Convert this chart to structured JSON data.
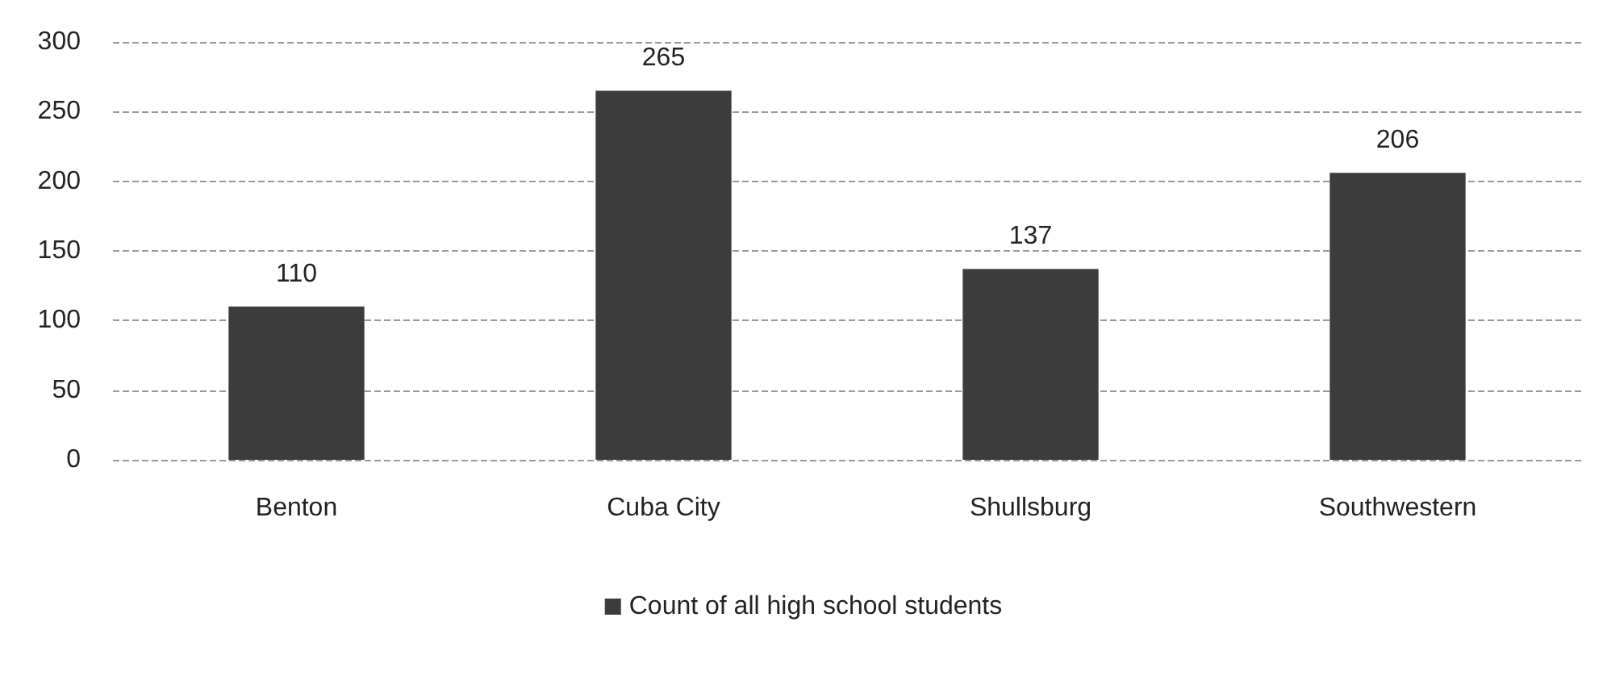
{
  "chart_data": {
    "type": "bar",
    "categories": [
      "Benton",
      "Cuba City",
      "Shullsburg",
      "Southwestern"
    ],
    "series": [
      {
        "name": "Count of all high school students",
        "color": "#3c3c3c",
        "values": [
          110,
          265,
          137,
          206
        ]
      }
    ],
    "ylim": [
      0,
      300
    ],
    "yticks": [
      0,
      50,
      100,
      150,
      200,
      250,
      300
    ],
    "grid": "y",
    "legend": "bottom",
    "data_labels": true
  }
}
